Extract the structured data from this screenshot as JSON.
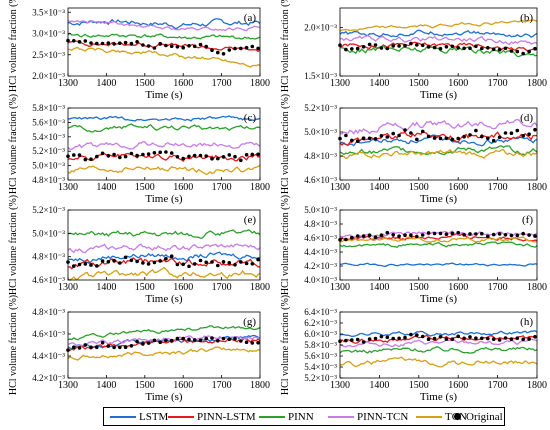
{
  "figure": {
    "ylabel": "HCl volume fraction (%)",
    "xlabel": "Time (s)"
  },
  "legend": [
    {
      "name": "LSTM",
      "color": "#1f6fd1",
      "kind": "line"
    },
    {
      "name": "PINN-LSTM",
      "color": "#e41a1c",
      "kind": "line"
    },
    {
      "name": "PINN",
      "color": "#2ca02c",
      "kind": "line"
    },
    {
      "name": "PINN-TCN",
      "color": "#c77ce8",
      "kind": "line"
    },
    {
      "name": "TCN",
      "color": "#d4a017",
      "kind": "line"
    },
    {
      "name": "Original",
      "color": "#000000",
      "kind": "marker"
    }
  ],
  "chart_data": [
    {
      "type": "line",
      "panel_label": "(a)",
      "xlabel": "Time (s)",
      "ylabel": "HCl volume fraction (%)",
      "xlim": [
        1300,
        1800
      ],
      "xticks": [
        "1300",
        "1400",
        "1500",
        "1600",
        "1700",
        "1800"
      ],
      "ylim": [
        2.0,
        3.6
      ],
      "yticks": [
        {
          "v": 2.0,
          "label": "2.0·10⁻³"
        },
        {
          "v": 2.5,
          "label": "2.5·10⁻³"
        },
        {
          "v": 3.0,
          "label": "3.0·10⁻³"
        },
        {
          "v": 3.5,
          "label": "3.5·10⁻³"
        }
      ],
      "series": [
        {
          "name": "LSTM",
          "base": 3.25,
          "trend": [
            0,
            0.05,
            0,
            -0.05,
            0,
            0
          ],
          "noise": 0.08
        },
        {
          "name": "PINN-LSTM",
          "base": 2.75,
          "trend": [
            0.05,
            0,
            0,
            -0.05,
            -0.1,
            -0.15
          ],
          "noise": 0.06
        },
        {
          "name": "PINN",
          "base": 2.95,
          "trend": [
            0,
            0,
            0,
            -0.05,
            -0.05,
            -0.05
          ],
          "noise": 0.06
        },
        {
          "name": "PINN-TCN",
          "base": 3.3,
          "trend": [
            0,
            -0.05,
            -0.15,
            -0.2,
            -0.2,
            -0.15
          ],
          "noise": 0.05
        },
        {
          "name": "TCN",
          "base": 2.6,
          "trend": [
            0.05,
            0,
            -0.05,
            -0.15,
            -0.2,
            -0.35
          ],
          "noise": 0.06
        },
        {
          "name": "Original",
          "base": 2.75,
          "trend": [
            0.05,
            0,
            0,
            -0.05,
            -0.1,
            -0.1
          ],
          "noise": 0.07
        }
      ]
    },
    {
      "type": "line",
      "panel_label": "(b)",
      "xlabel": "Time (s)",
      "ylabel": "HCl volume fraction (%)",
      "xlim": [
        1300,
        1800
      ],
      "xticks": [
        "1300",
        "1400",
        "1500",
        "1600",
        "1700",
        "1800"
      ],
      "ylim": [
        1.5,
        2.2
      ],
      "yticks": [
        {
          "v": 1.5,
          "label": "1.5·10⁻³"
        },
        {
          "v": 2.0,
          "label": "2.0·10⁻³"
        }
      ],
      "series": [
        {
          "name": "LSTM",
          "base": 1.93,
          "trend": [
            0,
            0,
            0.02,
            0.02,
            0,
            -0.02
          ],
          "noise": 0.03
        },
        {
          "name": "PINN-LSTM",
          "base": 1.82,
          "trend": [
            0,
            0,
            0,
            0,
            -0.02,
            -0.05
          ],
          "noise": 0.03
        },
        {
          "name": "PINN",
          "base": 1.78,
          "trend": [
            0,
            0,
            0,
            0,
            -0.03,
            -0.06
          ],
          "noise": 0.04
        },
        {
          "name": "PINN-TCN",
          "base": 1.88,
          "trend": [
            0,
            0,
            0,
            0,
            -0.02,
            -0.04
          ],
          "noise": 0.03
        },
        {
          "name": "TCN",
          "base": 1.95,
          "trend": [
            0.02,
            0.04,
            0.06,
            0.08,
            0.1,
            0.12
          ],
          "noise": 0.02
        },
        {
          "name": "Original",
          "base": 1.8,
          "trend": [
            0,
            0,
            0,
            0,
            -0.02,
            -0.03
          ],
          "noise": 0.035
        }
      ]
    },
    {
      "type": "line",
      "panel_label": "(c)",
      "xlabel": "Time (s)",
      "ylabel": "HCl volume fraction (%)",
      "xlim": [
        1300,
        1800
      ],
      "xticks": [
        "1300",
        "1400",
        "1500",
        "1600",
        "1700",
        "1800"
      ],
      "ylim": [
        4.8,
        5.8
      ],
      "yticks": [
        {
          "v": 4.8,
          "label": "4.8·10⁻³"
        },
        {
          "v": 5.0,
          "label": "5.0·10⁻³"
        },
        {
          "v": 5.2,
          "label": "5.2·10⁻³"
        },
        {
          "v": 5.4,
          "label": "5.4·10⁻³"
        },
        {
          "v": 5.6,
          "label": "5.6·10⁻³"
        },
        {
          "v": 5.8,
          "label": "5.8·10⁻³"
        }
      ],
      "series": [
        {
          "name": "LSTM",
          "base": 5.65,
          "trend": [
            0,
            0,
            0,
            0,
            0,
            0
          ],
          "noise": 0.03
        },
        {
          "name": "PINN-LSTM",
          "base": 5.1,
          "trend": [
            0,
            0.02,
            0.04,
            0.02,
            0.02,
            0.02
          ],
          "noise": 0.05
        },
        {
          "name": "PINN",
          "base": 5.5,
          "trend": [
            0,
            0.02,
            0.04,
            0.02,
            0.02,
            0.02
          ],
          "noise": 0.04
        },
        {
          "name": "PINN-TCN",
          "base": 5.25,
          "trend": [
            0,
            0.02,
            0.06,
            0.04,
            0.04,
            0.04
          ],
          "noise": 0.05
        },
        {
          "name": "TCN",
          "base": 4.92,
          "trend": [
            0,
            0.02,
            0.04,
            0.02,
            0.02,
            0.02
          ],
          "noise": 0.05
        },
        {
          "name": "Original",
          "base": 5.1,
          "trend": [
            0,
            0.03,
            0.05,
            0.02,
            0.02,
            0.04
          ],
          "noise": 0.06
        }
      ]
    },
    {
      "type": "line",
      "panel_label": "(d)",
      "xlabel": "Time (s)",
      "ylabel": "HCl volume fraction (%)",
      "xlim": [
        1300,
        1800
      ],
      "xticks": [
        "1300",
        "1400",
        "1500",
        "1600",
        "1700",
        "1800"
      ],
      "ylim": [
        4.6,
        5.2
      ],
      "yticks": [
        {
          "v": 4.6,
          "label": "4.6·10⁻³"
        },
        {
          "v": 4.8,
          "label": "4.8·10⁻³"
        },
        {
          "v": 5.0,
          "label": "5.0·10⁻³"
        },
        {
          "v": 5.2,
          "label": "5.2·10⁻³"
        }
      ],
      "series": [
        {
          "name": "LSTM",
          "base": 4.9,
          "trend": [
            0,
            0.02,
            0.03,
            0.03,
            0.03,
            0.03
          ],
          "noise": 0.03
        },
        {
          "name": "PINN-LSTM",
          "base": 4.92,
          "trend": [
            0,
            0.04,
            0.06,
            0.05,
            0.05,
            0.05
          ],
          "noise": 0.04
        },
        {
          "name": "PINN",
          "base": 4.82,
          "trend": [
            0,
            0.02,
            0.03,
            0.03,
            0.03,
            0.03
          ],
          "noise": 0.03
        },
        {
          "name": "PINN-TCN",
          "base": 4.98,
          "trend": [
            0,
            0.06,
            0.08,
            0.08,
            0.1,
            0.08
          ],
          "noise": 0.04
        },
        {
          "name": "TCN",
          "base": 4.8,
          "trend": [
            0,
            0.02,
            0.02,
            0.02,
            0.02,
            0.02
          ],
          "noise": 0.03
        },
        {
          "name": "Original",
          "base": 4.92,
          "trend": [
            0,
            0.05,
            0.07,
            0.06,
            0.06,
            0.05
          ],
          "noise": 0.045
        }
      ]
    },
    {
      "type": "line",
      "panel_label": "(e)",
      "xlabel": "Time (s)",
      "ylabel": "HCl volume fraction (%)",
      "xlim": [
        1300,
        1800
      ],
      "xticks": [
        "1300",
        "1400",
        "1500",
        "1600",
        "1700",
        "1800"
      ],
      "ylim": [
        4.6,
        5.2
      ],
      "yticks": [
        {
          "v": 4.6,
          "label": "4.6·10⁻³"
        },
        {
          "v": 4.8,
          "label": "4.8·10⁻³"
        },
        {
          "v": 5.0,
          "label": "5.0·10⁻³"
        },
        {
          "v": 5.2,
          "label": "5.2·10⁻³"
        }
      ],
      "series": [
        {
          "name": "LSTM",
          "base": 4.78,
          "trend": [
            0,
            0.02,
            0.03,
            0.03,
            0.03,
            0.03
          ],
          "noise": 0.03
        },
        {
          "name": "PINN-LSTM",
          "base": 4.72,
          "trend": [
            0,
            0.02,
            0.03,
            0.03,
            0.03,
            0.03
          ],
          "noise": 0.035
        },
        {
          "name": "PINN",
          "base": 4.98,
          "trend": [
            0,
            0.01,
            0.02,
            0.02,
            0.02,
            0.02
          ],
          "noise": 0.03
        },
        {
          "name": "PINN-TCN",
          "base": 4.85,
          "trend": [
            0,
            0.02,
            0.03,
            0.03,
            0.03,
            0.03
          ],
          "noise": 0.03
        },
        {
          "name": "TCN",
          "base": 4.62,
          "trend": [
            0,
            0.02,
            0.04,
            0.04,
            0.04,
            0.04
          ],
          "noise": 0.035
        },
        {
          "name": "Original",
          "base": 4.73,
          "trend": [
            0,
            0.02,
            0.03,
            0.03,
            0.03,
            0.03
          ],
          "noise": 0.04
        }
      ]
    },
    {
      "type": "line",
      "panel_label": "(f)",
      "xlabel": "Time (s)",
      "ylabel": "HCl volume fraction (%)",
      "xlim": [
        1300,
        1800
      ],
      "xticks": [
        "1300",
        "1400",
        "1500",
        "1600",
        "1700",
        "1800"
      ],
      "ylim": [
        4.0,
        5.0
      ],
      "yticks": [
        {
          "v": 4.0,
          "label": "4.0·10⁻³"
        },
        {
          "v": 4.2,
          "label": "4.2·10⁻³"
        },
        {
          "v": 4.4,
          "label": "4.4·10⁻³"
        },
        {
          "v": 4.6,
          "label": "4.6·10⁻³"
        },
        {
          "v": 4.8,
          "label": "4.8·10⁻³"
        },
        {
          "v": 5.0,
          "label": "5.0·10⁻³"
        }
      ],
      "series": [
        {
          "name": "LSTM",
          "base": 4.22,
          "trend": [
            0,
            0,
            0,
            0,
            0,
            0
          ],
          "noise": 0.02
        },
        {
          "name": "PINN-LSTM",
          "base": 4.58,
          "trend": [
            0,
            0.02,
            0.03,
            0.03,
            0.04,
            0.02
          ],
          "noise": 0.04
        },
        {
          "name": "PINN",
          "base": 4.48,
          "trend": [
            0,
            0.01,
            0.02,
            0.02,
            0.03,
            0.02
          ],
          "noise": 0.03
        },
        {
          "name": "PINN-TCN",
          "base": 4.62,
          "trend": [
            0,
            0.03,
            0.04,
            0.04,
            0.06,
            0.04
          ],
          "noise": 0.04
        },
        {
          "name": "TCN",
          "base": 4.55,
          "trend": [
            0,
            0.02,
            0.03,
            0.03,
            0.04,
            0.02
          ],
          "noise": 0.035
        },
        {
          "name": "Original",
          "base": 4.6,
          "trend": [
            0,
            0.03,
            0.04,
            0.04,
            0.06,
            0.03
          ],
          "noise": 0.045
        }
      ]
    },
    {
      "type": "line",
      "panel_label": "(g)",
      "xlabel": "Time (s)",
      "ylabel": "HCl volume fraction (%)",
      "xlim": [
        1300,
        1800
      ],
      "xticks": [
        "1300",
        "1400",
        "1500",
        "1600",
        "1700",
        "1800"
      ],
      "ylim": [
        4.2,
        4.8
      ],
      "yticks": [
        {
          "v": 4.2,
          "label": "4.2·10⁻³"
        },
        {
          "v": 4.4,
          "label": "4.4·10⁻³"
        },
        {
          "v": 4.6,
          "label": "4.6·10⁻³"
        },
        {
          "v": 4.8,
          "label": "4.8·10⁻³"
        }
      ],
      "series": [
        {
          "name": "LSTM",
          "base": 4.48,
          "trend": [
            0,
            0.02,
            0.05,
            0.06,
            0.08,
            0.08
          ],
          "noise": 0.025
        },
        {
          "name": "PINN-LSTM",
          "base": 4.46,
          "trend": [
            0,
            0.02,
            0.05,
            0.06,
            0.08,
            0.08
          ],
          "noise": 0.025
        },
        {
          "name": "PINN",
          "base": 4.56,
          "trend": [
            0,
            0.03,
            0.06,
            0.08,
            0.1,
            0.1
          ],
          "noise": 0.02
        },
        {
          "name": "PINN-TCN",
          "base": 4.5,
          "trend": [
            0,
            0.02,
            0.05,
            0.06,
            0.08,
            0.08
          ],
          "noise": 0.025
        },
        {
          "name": "TCN",
          "base": 4.38,
          "trend": [
            0,
            0.02,
            0.05,
            0.06,
            0.08,
            0.08
          ],
          "noise": 0.025
        },
        {
          "name": "Original",
          "base": 4.47,
          "trend": [
            0,
            0.02,
            0.05,
            0.06,
            0.08,
            0.08
          ],
          "noise": 0.03
        }
      ]
    },
    {
      "type": "line",
      "panel_label": "(h)",
      "xlabel": "Time (s)",
      "ylabel": "HCl volume fraction (%)",
      "xlim": [
        1300,
        1800
      ],
      "xticks": [
        "1300",
        "1400",
        "1500",
        "1600",
        "1700",
        "1800"
      ],
      "ylim": [
        5.2,
        6.4
      ],
      "yticks": [
        {
          "v": 5.2,
          "label": "5.2·10⁻³"
        },
        {
          "v": 5.4,
          "label": "5.4·10⁻³"
        },
        {
          "v": 5.6,
          "label": "5.6·10⁻³"
        },
        {
          "v": 5.8,
          "label": "5.8·10⁻³"
        },
        {
          "v": 6.0,
          "label": "6.0·10⁻³"
        },
        {
          "v": 6.2,
          "label": "6.2·10⁻³"
        },
        {
          "v": 6.4,
          "label": "6.4·10⁻³"
        }
      ],
      "series": [
        {
          "name": "LSTM",
          "base": 5.98,
          "trend": [
            0,
            0.02,
            0.03,
            0.03,
            0.04,
            0.04
          ],
          "noise": 0.04
        },
        {
          "name": "PINN-LSTM",
          "base": 5.88,
          "trend": [
            0,
            0.02,
            0.03,
            0.03,
            0.04,
            0.04
          ],
          "noise": 0.05
        },
        {
          "name": "PINN",
          "base": 5.68,
          "trend": [
            0,
            0.02,
            0.03,
            0.03,
            0.04,
            0.04
          ],
          "noise": 0.05
        },
        {
          "name": "PINN-TCN",
          "base": 5.8,
          "trend": [
            0,
            0.02,
            0.03,
            0.03,
            0.04,
            0.04
          ],
          "noise": 0.05
        },
        {
          "name": "TCN",
          "base": 5.45,
          "trend": [
            0,
            0.03,
            0.05,
            0.05,
            0.06,
            0.05
          ],
          "noise": 0.06
        },
        {
          "name": "Original",
          "base": 5.9,
          "trend": [
            0,
            0.02,
            0.04,
            0.04,
            0.05,
            0.05
          ],
          "noise": 0.06
        }
      ]
    }
  ]
}
